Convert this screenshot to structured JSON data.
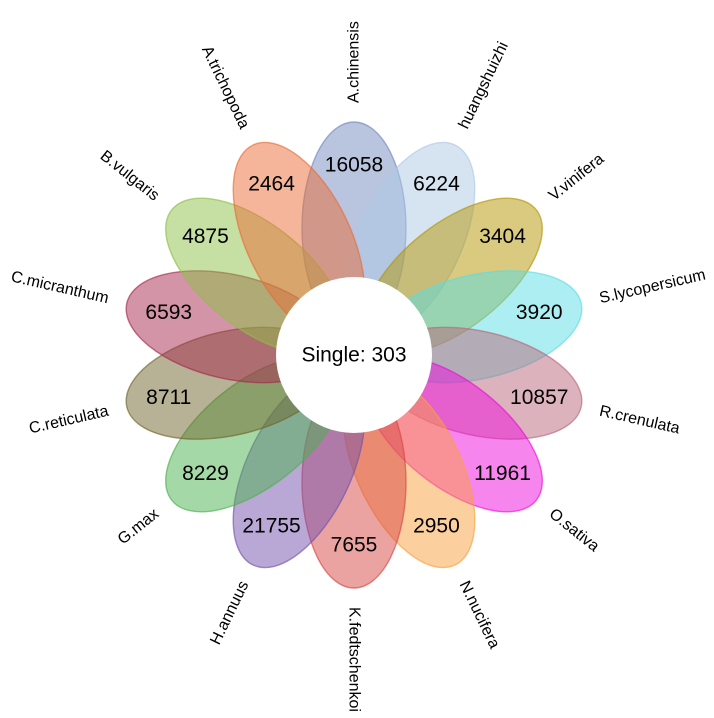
{
  "figure": {
    "background": "#ffffff",
    "text_color": "#000000",
    "center_fill": "#ffffff"
  },
  "chart_data": {
    "type": "flower",
    "title": "",
    "legend_position": "none",
    "grid": false,
    "center_label": "Single: 303",
    "center_single_count": 303,
    "petal_count": 14,
    "angle_step_deg": 25.714,
    "petal_fill_opacity": 0.5,
    "species": [
      {
        "label": "A.chinensis",
        "value": 16058,
        "color": "#7389bd",
        "tint": "#b9c4de"
      },
      {
        "label": "huangshuizhi",
        "value": 6224,
        "color": "#adc9e5",
        "tint": "#d6e4f2"
      },
      {
        "label": "V.vinifera",
        "value": 3404,
        "color": "#b39500",
        "tint": "#d9ca7e"
      },
      {
        "label": "S.lycopersicum",
        "value": 3920,
        "color": "#59dde5",
        "tint": "#aceef2"
      },
      {
        "label": "R.crenulata",
        "value": 10857,
        "color": "#b96779",
        "tint": "#dcb3bc"
      },
      {
        "label": "O.sativa",
        "value": 11961,
        "color": "#ed0bdd",
        "tint": "#f685ee"
      },
      {
        "label": "N.nucifera",
        "value": 2950,
        "color": "#f99f3f",
        "tint": "#fccf9f"
      },
      {
        "label": "K.fedtschenkoi",
        "value": 7655,
        "color": "#d74743",
        "tint": "#eba3a1"
      },
      {
        "label": "H.annuus",
        "value": 21755,
        "color": "#7351ad",
        "tint": "#b9a8d6"
      },
      {
        "label": "G.max",
        "value": 8229,
        "color": "#4bb14f",
        "tint": "#a5d8a7"
      },
      {
        "label": "C.reticulata",
        "value": 8711,
        "color": "#6f652b",
        "tint": "#b7b295"
      },
      {
        "label": "C.micranthum",
        "value": 6593,
        "color": "#a5294d",
        "tint": "#d294a6"
      },
      {
        "label": "B.vulgaris",
        "value": 4875,
        "color": "#8dbf47",
        "tint": "#c6dfa3"
      },
      {
        "label": "A.trichopoda",
        "value": 2464,
        "color": "#e96b35",
        "tint": "#f4b59a"
      }
    ]
  }
}
